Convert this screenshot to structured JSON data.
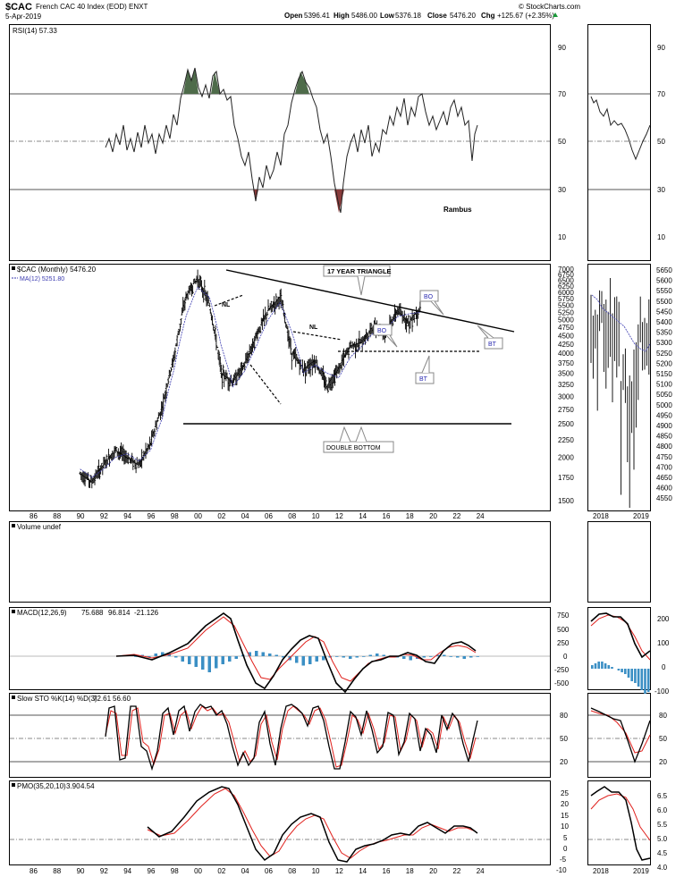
{
  "header": {
    "symbol": "$CAC",
    "name": "French CAC 40 Index (EOD) ENXT",
    "date": "5-Apr-2019",
    "watermark": "© StockCharts.com",
    "open_label": "Open",
    "open": "5396.41",
    "high_label": "High",
    "high": "5486.00",
    "low_label": "Low",
    "low": "5376.18",
    "close_label": "Close",
    "close": "5476.20",
    "chg_label": "Chg",
    "chg": "+125.67 (+2.35%)"
  },
  "colors": {
    "price": "#000000",
    "ma": "#3b3bb0",
    "signal": "#e0201c",
    "hist": "#3b8fc4",
    "overbought": "#4e6b4a",
    "oversold": "#8a3b3b",
    "grid": "#999999"
  },
  "panels": {
    "rsi": {
      "label": "RSI(14) 57.33",
      "ticks": [
        "90",
        "70",
        "50",
        "30",
        "10"
      ],
      "author": "Rambus"
    },
    "price": {
      "label": "$CAC (Monthly) 5476.20",
      "ma_label": "MA(12) 5251.80",
      "ticks": [
        "7000",
        "6750",
        "6500",
        "6250",
        "6000",
        "5750",
        "5500",
        "5250",
        "5000",
        "4750",
        "4500",
        "4250",
        "4000",
        "3750",
        "3500",
        "3250",
        "3000",
        "2750",
        "2500",
        "2250",
        "2000",
        "1750",
        "1500"
      ],
      "right_ticks": [
        "5650",
        "5600",
        "5550",
        "5500",
        "5450",
        "5400",
        "5350",
        "5300",
        "5250",
        "5200",
        "5150",
        "5100",
        "5050",
        "5000",
        "4950",
        "4900",
        "4850",
        "4800",
        "4750",
        "4700",
        "4650",
        "4600",
        "4550"
      ],
      "annotations": {
        "triangle": "17 YEAR TRIANGLE",
        "double_bottom": "DOUBLE BOTTOM",
        "nl1": "NL",
        "nl2": "NL",
        "bo1": "BO",
        "bo2": "BO",
        "bt1": "BT",
        "bt2": "BT"
      }
    },
    "volume": {
      "label": "Volume undef"
    },
    "macd": {
      "label": "MACD(12,26,9)",
      "v1": "75.688",
      "v2": "96.814",
      "v3": "-21.126",
      "ticks": [
        "750",
        "500",
        "250",
        "0",
        "-250",
        "-500"
      ],
      "right_ticks": [
        "200",
        "100",
        "0",
        "-100"
      ]
    },
    "sto": {
      "label": "Slow STO %K(14) %D(3)",
      "v1": "72.61",
      "v2": "56.60",
      "ticks": [
        "80",
        "50",
        "20"
      ]
    },
    "pmo": {
      "label": "PMO(35,20,10)",
      "v1": "3.90",
      "v2": "4.54",
      "ticks": [
        "25",
        "20",
        "15",
        "10",
        "5",
        "0",
        "-5",
        "-10"
      ],
      "right_ticks": [
        "6.5",
        "6.0",
        "5.5",
        "5.0",
        "4.5",
        "4.0"
      ]
    }
  },
  "x_axis": {
    "labels": [
      "86",
      "88",
      "90",
      "92",
      "94",
      "96",
      "98",
      "00",
      "02",
      "04",
      "06",
      "08",
      "10",
      "12",
      "14",
      "16",
      "18",
      "20",
      "22",
      "24"
    ],
    "right_labels": [
      "2018",
      "2019"
    ]
  },
  "chart_data": {
    "type": "line",
    "title": "$CAC French CAC 40 Index (EOD) ENXT",
    "x": [
      1990,
      1991,
      1992,
      1993,
      1994,
      1995,
      1996,
      1997,
      1998,
      1999,
      2000,
      2001,
      2002,
      2003,
      2004,
      2005,
      2006,
      2007,
      2008,
      2009,
      2010,
      2011,
      2012,
      2013,
      2014,
      2015,
      2016,
      2017,
      2018,
      2019
    ],
    "series": [
      {
        "name": "$CAC (Monthly)",
        "values": [
          1800,
          1700,
          1900,
          2100,
          2000,
          1900,
          2200,
          2800,
          3900,
          5800,
          6600,
          5500,
          3500,
          3300,
          3700,
          4500,
          5300,
          5800,
          4000,
          3600,
          3800,
          3200,
          3600,
          4200,
          4300,
          4800,
          4600,
          5300,
          4900,
          5476
        ]
      },
      {
        "name": "MA(12)",
        "values": [
          1850,
          1750,
          1850,
          2000,
          2050,
          1950,
          2100,
          2600,
          3600,
          5100,
          6200,
          5800,
          4200,
          3200,
          3550,
          4200,
          5000,
          5600,
          4600,
          3500,
          3700,
          3500,
          3400,
          3900,
          4200,
          4600,
          4700,
          5100,
          5200,
          5252
        ]
      }
    ],
    "ylim": [
      1400,
      7000
    ],
    "scale": "log"
  }
}
